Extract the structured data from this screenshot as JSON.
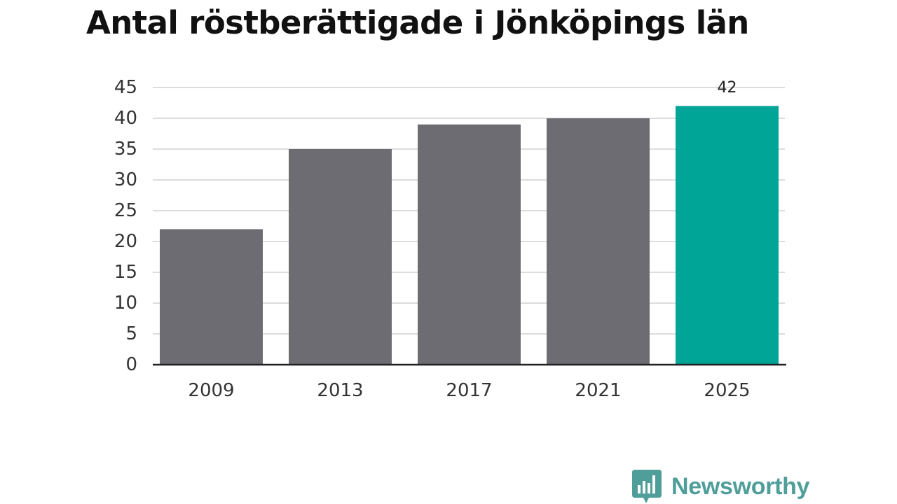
{
  "chart_data": {
    "type": "bar",
    "title": "Antal röstberättigade i Jönköpings län",
    "categories": [
      "2009",
      "2013",
      "2017",
      "2021",
      "2025"
    ],
    "values": [
      22,
      35,
      39,
      40,
      42
    ],
    "data_labels": [
      {
        "category": "2025",
        "text": "42"
      }
    ],
    "xlabel": "",
    "ylabel": "",
    "ylim": [
      0,
      45
    ],
    "yticks": [
      0,
      5,
      10,
      15,
      20,
      25,
      30,
      35,
      40,
      45
    ],
    "grid": true,
    "legend": "none",
    "colors": {
      "default_bar": "#6d6c72",
      "highlight_bar": "#00a598",
      "gridline": "#dddddd",
      "axis": "#222222"
    },
    "highlight_category": "2025"
  },
  "brand": {
    "name": "Newsworthy",
    "icon": "bar-chart-speech-bubble-icon",
    "color": "#4f9e9a"
  }
}
